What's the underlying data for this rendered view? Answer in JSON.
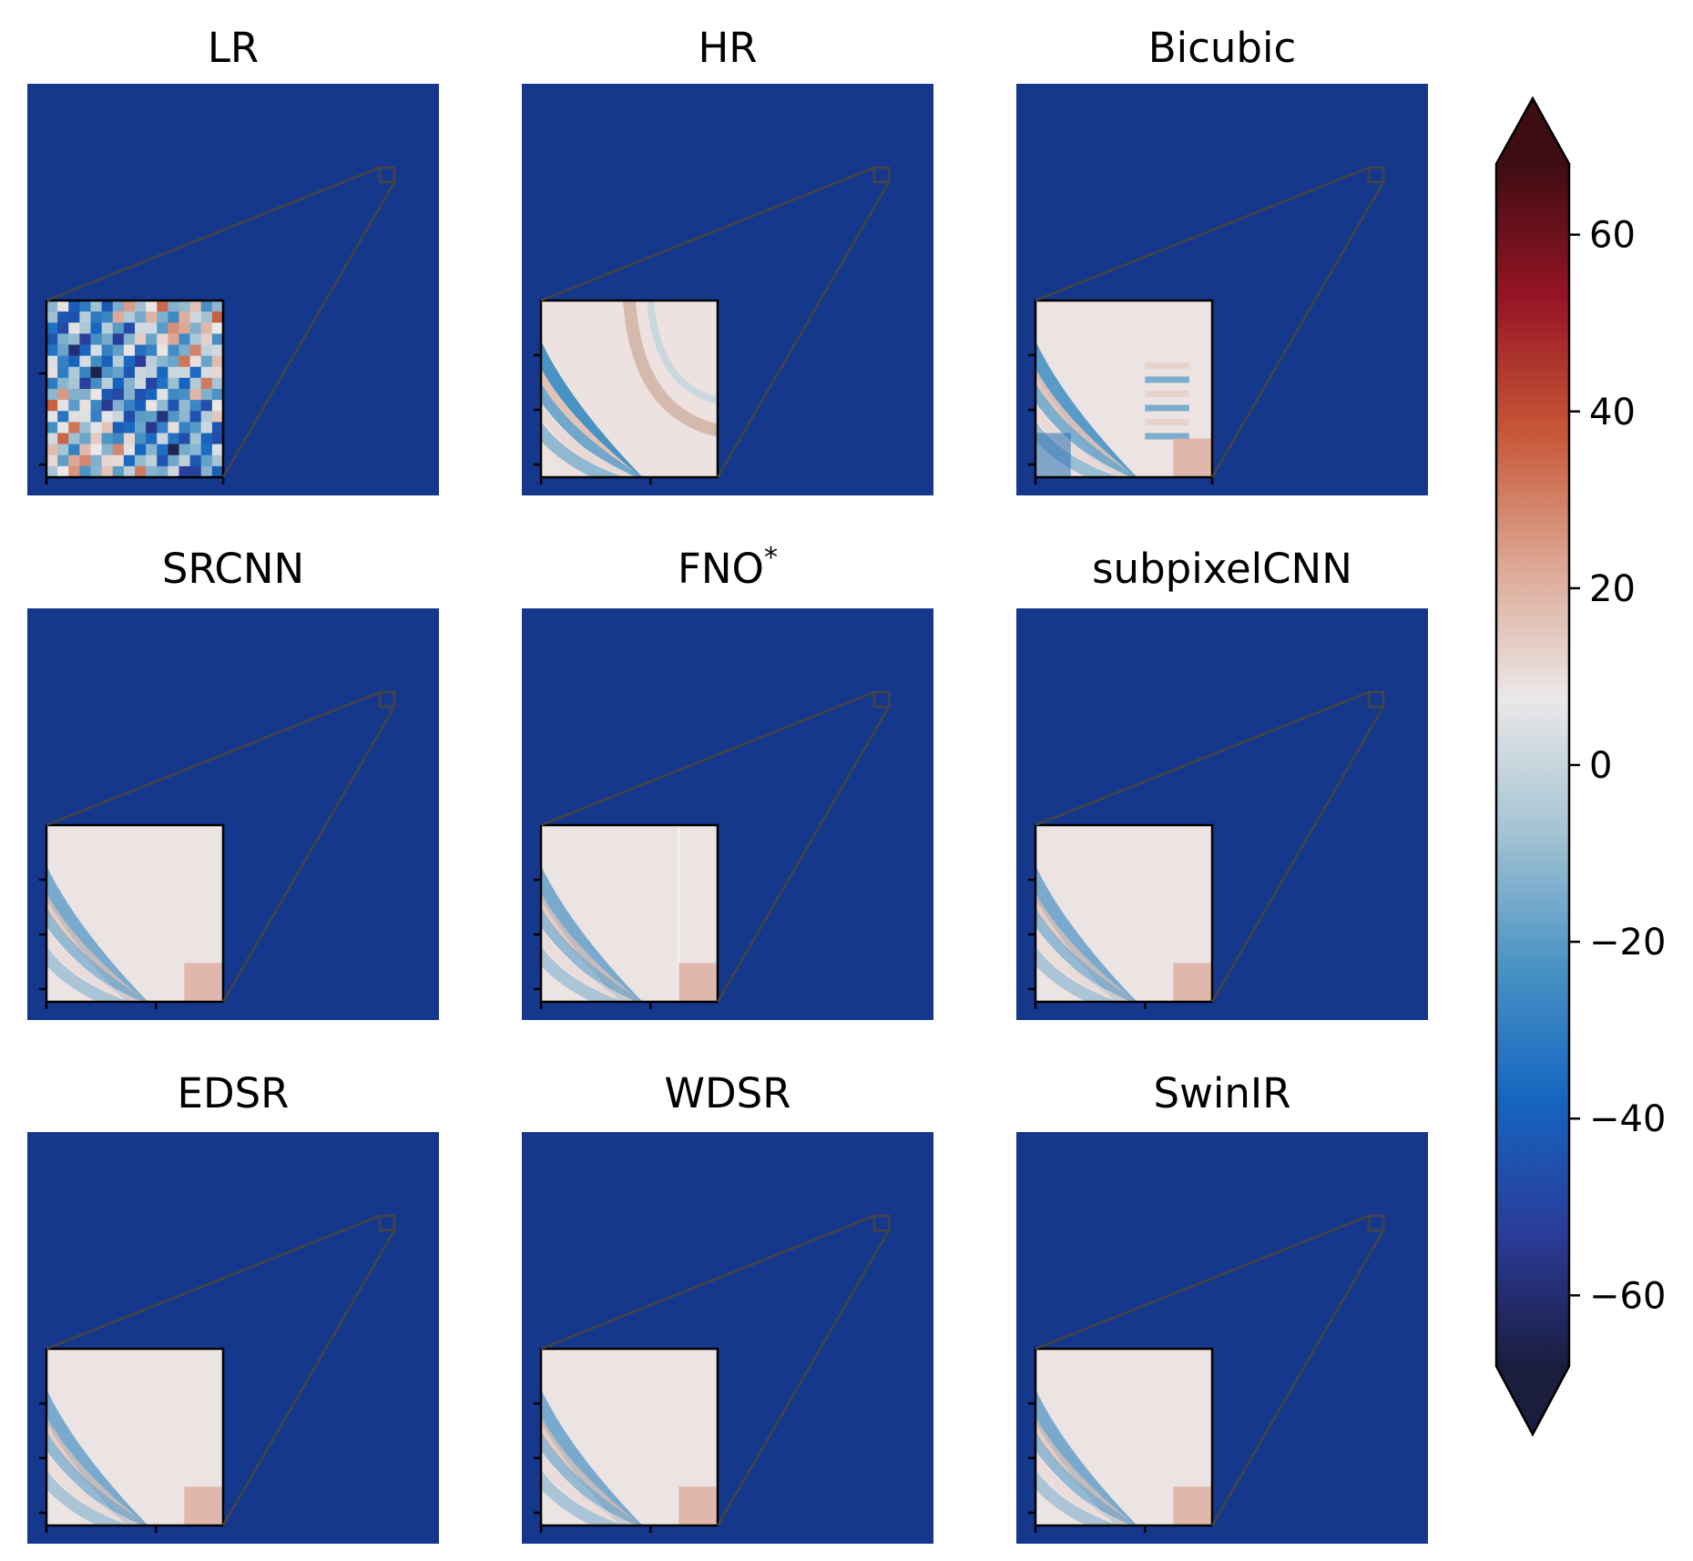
{
  "figure": {
    "panels": [
      {
        "title": "LR",
        "title_sup": "",
        "inset": "lr"
      },
      {
        "title": "HR",
        "title_sup": "",
        "inset": "hr"
      },
      {
        "title": "Bicubic",
        "title_sup": "",
        "inset": "bicubic"
      },
      {
        "title": "SRCNN",
        "title_sup": "",
        "inset": "smooth"
      },
      {
        "title": "FNO",
        "title_sup": "*",
        "inset": "fno"
      },
      {
        "title": "subpixelCNN",
        "title_sup": "",
        "inset": "smooth"
      },
      {
        "title": "EDSR",
        "title_sup": "",
        "inset": "clean"
      },
      {
        "title": "WDSR",
        "title_sup": "",
        "inset": "clean"
      },
      {
        "title": "SwinIR",
        "title_sup": "",
        "inset": "clean"
      }
    ],
    "colorbar": {
      "min": -68,
      "max": 68,
      "extend": "both",
      "ticks": [
        {
          "value": 60,
          "label": "60"
        },
        {
          "value": 40,
          "label": "40"
        },
        {
          "value": 20,
          "label": "20"
        },
        {
          "value": 0,
          "label": "0"
        },
        {
          "value": -20,
          "label": "−20"
        },
        {
          "value": -40,
          "label": "−40"
        },
        {
          "value": -60,
          "label": "−60"
        }
      ],
      "colors": [
        "#1b1d3f",
        "#2b3c9a",
        "#1565c0",
        "#4a93c4",
        "#a4c3d3",
        "#ebe8e8",
        "#dca693",
        "#c75636",
        "#961525",
        "#3e0d13"
      ]
    }
  }
}
